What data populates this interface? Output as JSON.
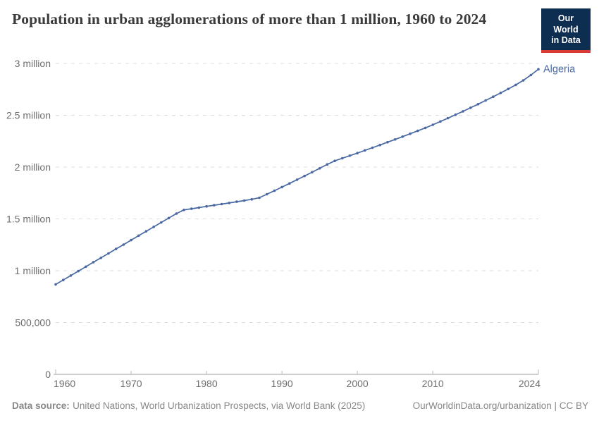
{
  "header": {
    "title": "Population in urban agglomerations of more than 1 million, 1960 to 2024"
  },
  "logo": {
    "line1": "Our World",
    "line2": "in Data",
    "bg_color": "#0d2d51",
    "accent_color": "#d93a34"
  },
  "chart_data": {
    "type": "line",
    "title": "Population in urban agglomerations of more than 1 million, 1960 to 2024",
    "xlabel": "",
    "ylabel": "",
    "xlim": [
      1960,
      2024
    ],
    "ylim": [
      0,
      3000000
    ],
    "grid": "horizontal-dashed",
    "grid_color": "#dcdcdc",
    "axis_color": "#9e9e9e",
    "tick_color": "#b8b8b8",
    "legend_position": "end-of-line-label",
    "x": [
      1960,
      1961,
      1962,
      1963,
      1964,
      1965,
      1966,
      1967,
      1968,
      1969,
      1970,
      1971,
      1972,
      1973,
      1974,
      1975,
      1976,
      1977,
      1978,
      1979,
      1980,
      1981,
      1982,
      1983,
      1984,
      1985,
      1986,
      1987,
      1988,
      1989,
      1990,
      1991,
      1992,
      1993,
      1994,
      1995,
      1996,
      1997,
      1998,
      1999,
      2000,
      2001,
      2002,
      2003,
      2004,
      2005,
      2006,
      2007,
      2008,
      2009,
      2010,
      2011,
      2012,
      2013,
      2014,
      2015,
      2016,
      2017,
      2018,
      2019,
      2020,
      2021,
      2022,
      2023,
      2024
    ],
    "series": [
      {
        "name": "Algeria",
        "color": "#4a69a2",
        "values": [
          868000,
          910000,
          953000,
          996000,
          1039000,
          1082000,
          1124000,
          1167000,
          1210000,
          1252000,
          1295000,
          1338000,
          1380000,
          1423000,
          1466000,
          1508000,
          1551000,
          1587000,
          1598000,
          1609000,
          1621000,
          1632000,
          1643000,
          1654000,
          1666000,
          1677000,
          1689000,
          1704000,
          1738000,
          1772000,
          1807000,
          1842000,
          1878000,
          1914000,
          1951000,
          1988000,
          2026000,
          2060000,
          2085000,
          2110000,
          2135000,
          2161000,
          2187000,
          2213000,
          2240000,
          2267000,
          2294000,
          2322000,
          2350000,
          2378000,
          2408000,
          2440000,
          2472000,
          2505000,
          2538000,
          2572000,
          2607000,
          2643000,
          2679000,
          2716000,
          2754000,
          2793000,
          2837000,
          2888000,
          2944000
        ]
      }
    ],
    "yticks": [
      {
        "value": 0,
        "label": "0"
      },
      {
        "value": 500000,
        "label": "500,000"
      },
      {
        "value": 1000000,
        "label": "1 million"
      },
      {
        "value": 1500000,
        "label": "1.5 million"
      },
      {
        "value": 2000000,
        "label": "2 million"
      },
      {
        "value": 2500000,
        "label": "2.5 million"
      },
      {
        "value": 3000000,
        "label": "3 million"
      }
    ],
    "xticks": [
      {
        "value": 1960,
        "label": "1960"
      },
      {
        "value": 1970,
        "label": "1970"
      },
      {
        "value": 1980,
        "label": "1980"
      },
      {
        "value": 1990,
        "label": "1990"
      },
      {
        "value": 2000,
        "label": "2000"
      },
      {
        "value": 2010,
        "label": "2010"
      },
      {
        "value": 2024,
        "label": "2024"
      }
    ]
  },
  "footer": {
    "source_label": "Data source:",
    "source_text": "United Nations, World Urbanization Prospects, via World Bank (2025)",
    "credit": "OurWorldinData.org/urbanization | CC BY"
  }
}
